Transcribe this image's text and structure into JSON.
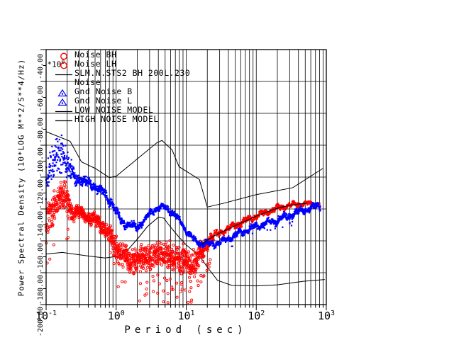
{
  "axes": {
    "x": {
      "title": "Period (sec)",
      "scale": "log",
      "ticks": [
        {
          "base": "10",
          "exp": "-1"
        },
        {
          "base": "10",
          "exp": "0"
        },
        {
          "base": "10",
          "exp": "1"
        },
        {
          "base": "10",
          "exp": "2"
        },
        {
          "base": "10",
          "exp": "3"
        }
      ]
    },
    "y": {
      "title": "Power Spectral Density (10*LOG M**2/S**4/Hz)",
      "multiplier_base": "*10",
      "multiplier_exp": "0",
      "ticks": [
        "-40.00",
        "-60.00",
        "-80.00",
        "-100.00",
        "-120.00",
        "-140.00",
        "-160.00",
        "-180.00",
        "-200.00"
      ],
      "range": [
        -200,
        -40
      ],
      "step": 20
    }
  },
  "legend": {
    "items": [
      {
        "symbol": "circle",
        "color": "#ff0000",
        "label": "Noise BH"
      },
      {
        "symbol": "circle",
        "color": "#ff0000",
        "label": "Noise LH"
      },
      {
        "symbol": "line",
        "color": "#000000",
        "label": "SLM.N.STS2 BH 200L.230"
      },
      {
        "symbol": "none",
        "color": "",
        "label": "Noise"
      },
      {
        "symbol": "triangle",
        "color": "#0000ff",
        "label": "Gnd Noise B"
      },
      {
        "symbol": "triangle",
        "color": "#0000ff",
        "label": "Gnd Noise L"
      },
      {
        "symbol": "line",
        "color": "#000000",
        "label": "LOW NOISE MODEL"
      },
      {
        "symbol": "line",
        "color": "#000000",
        "label": "HIGH NOISE MODEL"
      }
    ]
  },
  "chart_data": {
    "type": "scatter",
    "xlabel": "Period (sec)",
    "ylabel": "Power Spectral Density (10*LOG M**2/S**4/Hz)",
    "x_range": [
      0.1,
      1000
    ],
    "y_range": [
      -200,
      -40
    ],
    "grid": "full-log-minor",
    "series": [
      {
        "name": "Gnd Noise (blue)",
        "color": "#0000ff",
        "style": "scatter-band",
        "band": [
          [
            0.1,
            -122,
            13
          ],
          [
            0.12,
            -113,
            16
          ],
          [
            0.14,
            -107,
            15
          ],
          [
            0.17,
            -105,
            14
          ],
          [
            0.2,
            -112,
            11
          ],
          [
            0.25,
            -120,
            5
          ],
          [
            0.3,
            -122,
            3.5
          ],
          [
            0.4,
            -123.5,
            3.5
          ],
          [
            0.5,
            -126,
            3.5
          ],
          [
            0.6,
            -129,
            3
          ],
          [
            0.7,
            -131,
            3
          ],
          [
            0.85,
            -136,
            3
          ],
          [
            1.0,
            -142,
            3
          ],
          [
            1.2,
            -147,
            2.5
          ],
          [
            1.5,
            -150.5,
            2.5
          ],
          [
            2.0,
            -151,
            2.5
          ],
          [
            2.6,
            -147,
            2
          ],
          [
            3.2,
            -141.5,
            2
          ],
          [
            4.0,
            -139,
            2
          ],
          [
            5.0,
            -139,
            2
          ],
          [
            6.0,
            -141,
            2
          ],
          [
            7.0,
            -144.5,
            2
          ],
          [
            8.0,
            -147,
            2
          ],
          [
            9.5,
            -152,
            2
          ],
          [
            11,
            -156,
            2
          ],
          [
            13,
            -159.5,
            2
          ],
          [
            16,
            -161.5,
            2
          ],
          [
            20,
            -162,
            2
          ],
          [
            26,
            -161.5,
            2
          ],
          [
            33,
            -160.5,
            2
          ],
          [
            45,
            -157.5,
            2
          ],
          [
            60,
            -155,
            2
          ],
          [
            80,
            -152.5,
            2
          ],
          [
            100,
            -151,
            2
          ],
          [
            140,
            -149,
            2.2
          ],
          [
            200,
            -147,
            2.2
          ],
          [
            280,
            -144.5,
            2.2
          ],
          [
            400,
            -142,
            2.2
          ],
          [
            550,
            -140,
            2
          ],
          [
            700,
            -138.5,
            2
          ],
          [
            820,
            -138,
            2
          ]
        ],
        "spike_envelope": [
          [
            0.1,
            -100
          ],
          [
            0.12,
            -92
          ],
          [
            0.14,
            -88
          ],
          [
            0.17,
            -90
          ],
          [
            0.2,
            -97
          ],
          [
            0.24,
            -112
          ]
        ]
      },
      {
        "name": "Noise (red)",
        "color": "#ff0000",
        "style": "scatter-band",
        "band": [
          [
            0.1,
            -151,
            13
          ],
          [
            0.12,
            -143,
            12
          ],
          [
            0.14,
            -134,
            10
          ],
          [
            0.17,
            -131,
            10
          ],
          [
            0.2,
            -136,
            11
          ],
          [
            0.25,
            -142,
            6
          ],
          [
            0.3,
            -142.5,
            4
          ],
          [
            0.4,
            -145,
            4
          ],
          [
            0.5,
            -147,
            4.5
          ],
          [
            0.6,
            -150,
            5
          ],
          [
            0.7,
            -153,
            6
          ],
          [
            0.85,
            -158,
            7
          ],
          [
            1.0,
            -164,
            9
          ],
          [
            1.2,
            -169,
            9
          ],
          [
            1.5,
            -172,
            9
          ],
          [
            2.0,
            -172,
            9
          ],
          [
            2.6,
            -170.5,
            9
          ],
          [
            3.2,
            -170,
            9
          ],
          [
            4.0,
            -168.5,
            9
          ],
          [
            5.0,
            -168,
            9
          ],
          [
            6.0,
            -171,
            10
          ],
          [
            7.0,
            -170.5,
            10
          ],
          [
            8.5,
            -172,
            11
          ],
          [
            10,
            -174.5,
            11
          ],
          [
            12,
            -175.5,
            11
          ],
          [
            14,
            -173,
            10
          ],
          [
            17,
            -168,
            8
          ],
          [
            20,
            -161,
            5
          ],
          [
            24,
            -157.5,
            3
          ],
          [
            30,
            -155,
            2.5
          ],
          [
            40,
            -152,
            2
          ],
          [
            55,
            -149.5,
            2
          ],
          [
            75,
            -147,
            2
          ],
          [
            100,
            -144.5,
            2
          ],
          [
            140,
            -142,
            2
          ],
          [
            200,
            -139.5,
            1.8
          ],
          [
            280,
            -138,
            1.8
          ],
          [
            400,
            -137,
            1.5
          ],
          [
            550,
            -136.8,
            1.5
          ],
          [
            700,
            -137,
            1.5
          ],
          [
            800,
            -137.3,
            1.5
          ]
        ],
        "spike_envelope": [
          [
            0.1,
            -104
          ],
          [
            0.11,
            -101
          ],
          [
            0.125,
            -122
          ],
          [
            0.17,
            -118
          ],
          [
            0.22,
            -128
          ],
          [
            0.25,
            -136
          ]
        ],
        "outliers_low_limit": -199
      }
    ],
    "models": [
      {
        "name": "HIGH NOISE MODEL",
        "color": "#000000",
        "points": [
          [
            0.1,
            -91.5
          ],
          [
            0.22,
            -97.5
          ],
          [
            0.32,
            -110.5
          ],
          [
            0.5,
            -114.5
          ],
          [
            0.8,
            -120.3
          ],
          [
            1.0,
            -119.5
          ],
          [
            3.8,
            -98.5
          ],
          [
            4.5,
            -97
          ],
          [
            6.3,
            -103
          ],
          [
            7.9,
            -113.5
          ],
          [
            15.4,
            -121.5
          ],
          [
            20,
            -138.8
          ],
          [
            35,
            -136.3
          ],
          [
            100,
            -131
          ],
          [
            330,
            -126.7
          ],
          [
            900,
            -114.5
          ]
        ]
      },
      {
        "name": "LOW NOISE MODEL",
        "color": "#000000",
        "points": [
          [
            0.1,
            -168.3
          ],
          [
            0.17,
            -167.3
          ],
          [
            0.45,
            -169.8
          ],
          [
            0.7,
            -170.8
          ],
          [
            1.0,
            -169.8
          ],
          [
            1.3,
            -168.2
          ],
          [
            2.0,
            -159
          ],
          [
            2.8,
            -151
          ],
          [
            4.0,
            -145.2
          ],
          [
            4.8,
            -145.8
          ],
          [
            6.0,
            -151.5
          ],
          [
            8.0,
            -158
          ],
          [
            10,
            -162.5
          ],
          [
            13,
            -166.8
          ],
          [
            15.5,
            -169.5
          ],
          [
            20,
            -176.5
          ],
          [
            28,
            -184.8
          ],
          [
            45,
            -188
          ],
          [
            100,
            -188.3
          ],
          [
            200,
            -187.6
          ],
          [
            470,
            -185.4
          ],
          [
            950,
            -184.3
          ]
        ]
      },
      {
        "name": "SLM.N.STS2 BH 200L.230",
        "color": "#000000",
        "points": [
          [
            17,
            -162
          ],
          [
            20,
            -159.5
          ],
          [
            26,
            -156.5
          ],
          [
            34,
            -154
          ],
          [
            50,
            -150.5
          ],
          [
            75,
            -147
          ],
          [
            100,
            -144.5
          ],
          [
            140,
            -142
          ],
          [
            200,
            -139.5
          ],
          [
            300,
            -137.7
          ],
          [
            420,
            -136.8
          ],
          [
            520,
            -136.5
          ]
        ]
      }
    ]
  }
}
